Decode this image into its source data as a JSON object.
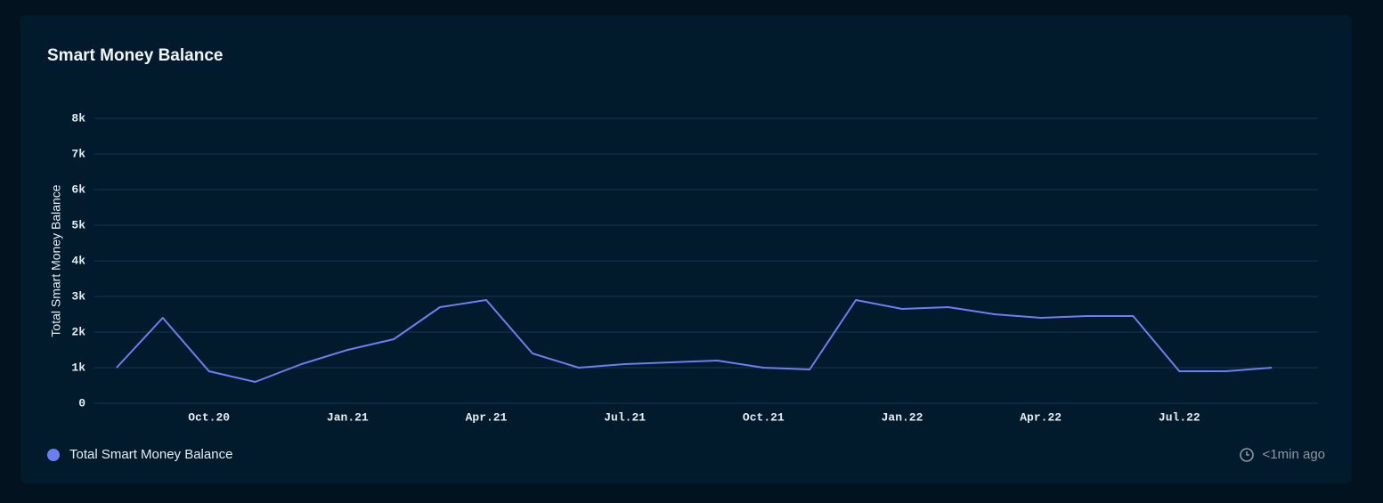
{
  "chart_data": {
    "type": "line",
    "title": "Smart Money Balance",
    "y_label": "Total Smart Money Balance",
    "x": [
      "2020-08",
      "2020-09",
      "2020-10",
      "2020-11",
      "2020-12",
      "2021-01",
      "2021-02",
      "2021-03",
      "2021-04",
      "2021-05",
      "2021-06",
      "2021-07",
      "2021-08",
      "2021-09",
      "2021-10",
      "2021-11",
      "2021-12",
      "2022-01",
      "2022-02",
      "2022-03",
      "2022-04",
      "2022-05",
      "2022-06",
      "2022-07",
      "2022-08",
      "2022-09"
    ],
    "series": [
      {
        "name": "Total Smart Money Balance",
        "color": "#6b7ff3",
        "values": [
          1000,
          2400,
          900,
          600,
          1100,
          1500,
          1800,
          2700,
          2900,
          1400,
          1000,
          1100,
          1150,
          1200,
          1000,
          950,
          2900,
          2650,
          2700,
          2500,
          2400,
          2450,
          2450,
          900,
          900,
          1000
        ]
      }
    ],
    "xlim": [
      "2020-07",
      "2022-10"
    ],
    "xticks": [
      {
        "value": "2020-10",
        "label": "Oct.20"
      },
      {
        "value": "2021-01",
        "label": "Jan.21"
      },
      {
        "value": "2021-04",
        "label": "Apr.21"
      },
      {
        "value": "2021-07",
        "label": "Jul.21"
      },
      {
        "value": "2021-10",
        "label": "Oct.21"
      },
      {
        "value": "2022-01",
        "label": "Jan.22"
      },
      {
        "value": "2022-04",
        "label": "Apr.22"
      },
      {
        "value": "2022-07",
        "label": "Jul.22"
      }
    ],
    "ylim": [
      0,
      8500
    ],
    "yticks": [
      0,
      {
        "value": 1000,
        "label": "1k"
      },
      {
        "value": 2000,
        "label": "2k"
      },
      {
        "value": 3000,
        "label": "3k"
      },
      {
        "value": 4000,
        "label": "4k"
      },
      {
        "value": 5000,
        "label": "5k"
      },
      {
        "value": 6000,
        "label": "6k"
      },
      {
        "value": 7000,
        "label": "7k"
      },
      {
        "value": 8000,
        "label": "8k"
      }
    ],
    "grid": true,
    "updated": "<1min ago"
  }
}
